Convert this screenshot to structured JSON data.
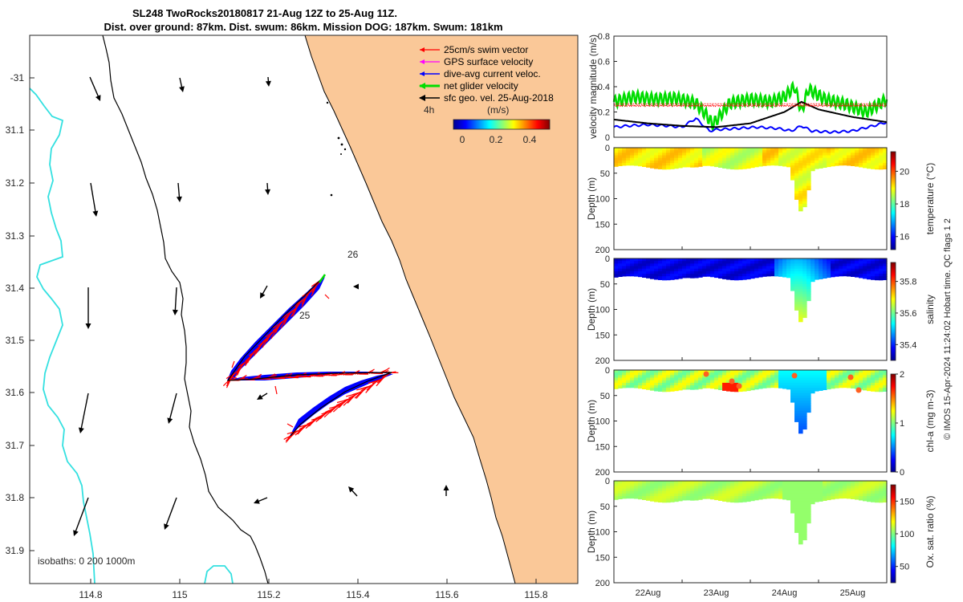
{
  "title_line1": "SL248 TwoRocks20180817 21-Aug 12Z to 25-Aug 11Z.",
  "title_line2": "Dist. over ground: 87km. Dist. swum: 86km. Mission DOG: 187km. Swum: 181km",
  "copyright": "© IMOS 15-Apr-2024 11:24:02 Hobart time. QC flags 1  2",
  "colors": {
    "land": "#fac898",
    "coast": "#000000",
    "iso200": "#000000",
    "iso1000": "#33e0e0",
    "swim": "#ff0000",
    "gps": "#ff00ff",
    "dac": "#0000ff",
    "net": "#00dd00",
    "sfc": "#000000"
  },
  "map": {
    "xticks": [
      "114.8",
      "115",
      "115.2",
      "115.4",
      "115.6",
      "115.8"
    ],
    "yticks": [
      "-31",
      "31.1",
      "31.2",
      "31.3",
      "31.4",
      "31.5",
      "31.6",
      "31.7",
      "31.8",
      "31.9"
    ],
    "legend": [
      "25cm/s swim vector",
      "GPS surface velocity",
      "dive-avg current veloc.",
      "net glider velocity",
      "sfc geo. vel. 25-Aug-2018"
    ],
    "time_tag": "4h",
    "cbar_title": "(m/s)",
    "cbar_ticks": [
      "0",
      "0.2",
      "0.4"
    ],
    "day_labels": [
      "26",
      "25"
    ],
    "isobath_label": "isobaths: 0   200  1000m"
  },
  "chart_data": [
    {
      "type": "line",
      "title": "velocity magnitude",
      "ylabel": "velocity magnitude (m/s)",
      "ylim": [
        0,
        0.8
      ],
      "yticks": [
        "0",
        "0.2",
        "0.4",
        "0.6",
        "0.8"
      ],
      "xrange": [
        21.5,
        25.5
      ],
      "series": [
        {
          "name": "net glider velocity",
          "x": [
            21.5,
            21.8,
            22.1,
            22.4,
            22.7,
            22.85,
            22.95,
            23.2,
            23.5,
            23.8,
            24.0,
            24.15,
            24.25,
            24.35,
            24.6,
            24.9,
            25.2,
            25.5
          ],
          "y": [
            0.28,
            0.32,
            0.3,
            0.31,
            0.27,
            0.18,
            0.1,
            0.27,
            0.3,
            0.28,
            0.32,
            0.4,
            0.2,
            0.38,
            0.3,
            0.26,
            0.2,
            0.3
          ]
        },
        {
          "name": "dive-avg current veloc.",
          "x": [
            21.5,
            21.7,
            22.0,
            22.3,
            22.5,
            22.7,
            22.9,
            23.0,
            23.3,
            23.6,
            23.9,
            24.1,
            24.25,
            24.4,
            24.7,
            25.0,
            25.3,
            25.5
          ],
          "y": [
            0.08,
            0.09,
            0.1,
            0.09,
            0.08,
            0.15,
            0.05,
            0.06,
            0.07,
            0.08,
            0.07,
            0.05,
            0.09,
            0.05,
            0.04,
            0.05,
            0.09,
            0.12
          ]
        },
        {
          "name": "sfc geo. vel.",
          "x": [
            21.5,
            22.0,
            22.5,
            23.0,
            23.5,
            24.0,
            24.25,
            24.5,
            25.0,
            25.5
          ],
          "y": [
            0.14,
            0.11,
            0.09,
            0.08,
            0.11,
            0.2,
            0.28,
            0.22,
            0.16,
            0.12
          ]
        },
        {
          "name": "swim speed",
          "x": [
            21.5,
            25.5
          ],
          "y": [
            0.25,
            0.25
          ]
        }
      ]
    },
    {
      "type": "heatmap",
      "variable": "temperature",
      "ylabel": "Depth (m)",
      "yticks": [
        "0",
        "50",
        "100",
        "150",
        "200"
      ],
      "ylim": [
        0,
        200
      ],
      "clabel": "temperature (°C)",
      "cticks": [
        "16",
        "18",
        "20"
      ],
      "crange": [
        15.2,
        21.2
      ],
      "value_surface": 20.0,
      "value_deep": 19.0
    },
    {
      "type": "heatmap",
      "variable": "salinity",
      "ylabel": "Depth (m)",
      "yticks": [
        "0",
        "50",
        "100",
        "150",
        "200"
      ],
      "ylim": [
        0,
        200
      ],
      "clabel": "salinity",
      "cticks": [
        "35.4",
        "35.6",
        "35.8"
      ],
      "crange": [
        35.3,
        35.92
      ],
      "value_surface": 35.38,
      "value_deep": 35.55
    },
    {
      "type": "heatmap",
      "variable": "chl-a",
      "ylabel": "Depth (m)",
      "yticks": [
        "0",
        "50",
        "100",
        "150",
        "200"
      ],
      "ylim": [
        0,
        200
      ],
      "clabel": "chl-a (mg m-3)",
      "cticks": [
        "0",
        "1",
        "2"
      ],
      "crange": [
        0,
        2
      ],
      "value_surface": 1.2,
      "value_deep": 0.8
    },
    {
      "type": "heatmap",
      "variable": "oxygen saturation",
      "ylabel": "Depth (m)",
      "yticks": [
        "0",
        "50",
        "100",
        "150",
        "200"
      ],
      "ylim": [
        0,
        200
      ],
      "clabel": "Ox. sat. ratio (%)",
      "cticks": [
        "50",
        "100",
        "150"
      ],
      "crange": [
        25,
        175
      ],
      "value_surface": 110,
      "value_deep": 105
    }
  ],
  "time_axis": {
    "ticks": [
      "22Aug",
      "23Aug",
      "24Aug",
      "25Aug"
    ]
  }
}
